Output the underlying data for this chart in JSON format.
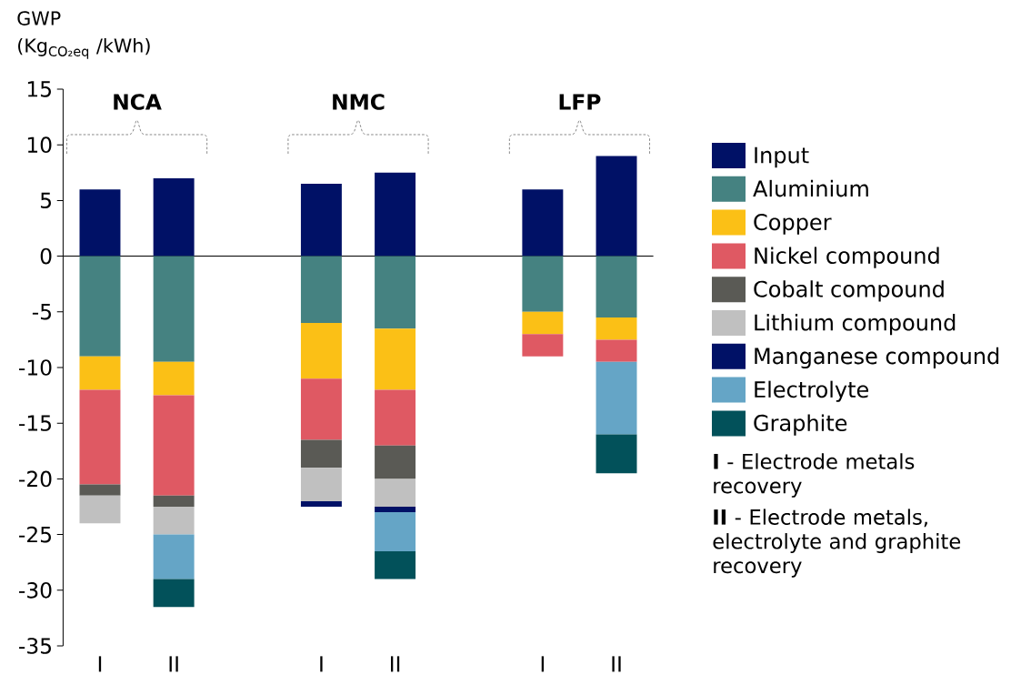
{
  "chart_data": {
    "type": "bar",
    "stacked": true,
    "ylabel": "GWP (Kg$_{CO₂eq}$ /kWh)",
    "categories": [
      "I",
      "II",
      null,
      "I",
      "II",
      null,
      "I",
      "II"
    ],
    "series": [
      {
        "name": "Input",
        "color": "#001166",
        "values": [
          6,
          7,
          null,
          6.5,
          7.5,
          null,
          6,
          9
        ]
      },
      {
        "name": "Aluminium",
        "color": "#458281",
        "values": [
          -9,
          -9.5,
          null,
          -6,
          -6.5,
          null,
          -5,
          -5.5
        ]
      },
      {
        "name": "Copper",
        "color": "#fbc016",
        "values": [
          -3,
          -3,
          null,
          -5,
          -5.5,
          null,
          -2,
          -2
        ]
      },
      {
        "name": "Nickel compound",
        "color": "#df5963",
        "values": [
          -8.5,
          -9,
          null,
          -5.5,
          -5,
          null,
          -2,
          -2
        ]
      },
      {
        "name": "Cobalt compound",
        "color": "#5a5a55",
        "values": [
          -1,
          -1,
          null,
          -2.5,
          -3,
          null,
          null,
          null
        ]
      },
      {
        "name": "Lithium compound",
        "color": "#c0c0c0",
        "values": [
          -2.5,
          -2.5,
          null,
          -3,
          -2.5,
          null,
          null,
          null
        ]
      },
      {
        "name": "Manganese compound",
        "color": "#001166",
        "values": [
          null,
          null,
          null,
          -0.5,
          -0.5,
          null,
          null,
          null
        ]
      },
      {
        "name": "Electrolyte",
        "color": "#65a5c6",
        "values": [
          null,
          -4,
          null,
          null,
          -3.5,
          null,
          null,
          -6.5
        ]
      },
      {
        "name": "Graphite",
        "color": "#02515a",
        "values": [
          null,
          -2.5,
          null,
          null,
          -2.5,
          null,
          null,
          -3.5
        ]
      }
    ],
    "ylim": [
      -35,
      15
    ],
    "yticks": [
      -35,
      -30,
      -25,
      -20,
      -15,
      -10,
      -5,
      0,
      5,
      10,
      15
    ],
    "legend": "right",
    "annotations": [
      "NCA",
      "NMC",
      "LFP",
      "**I** - Electrode metals recovery",
      "**II** - Electrode metals, electrolyte and graphite recovery"
    ]
  }
}
